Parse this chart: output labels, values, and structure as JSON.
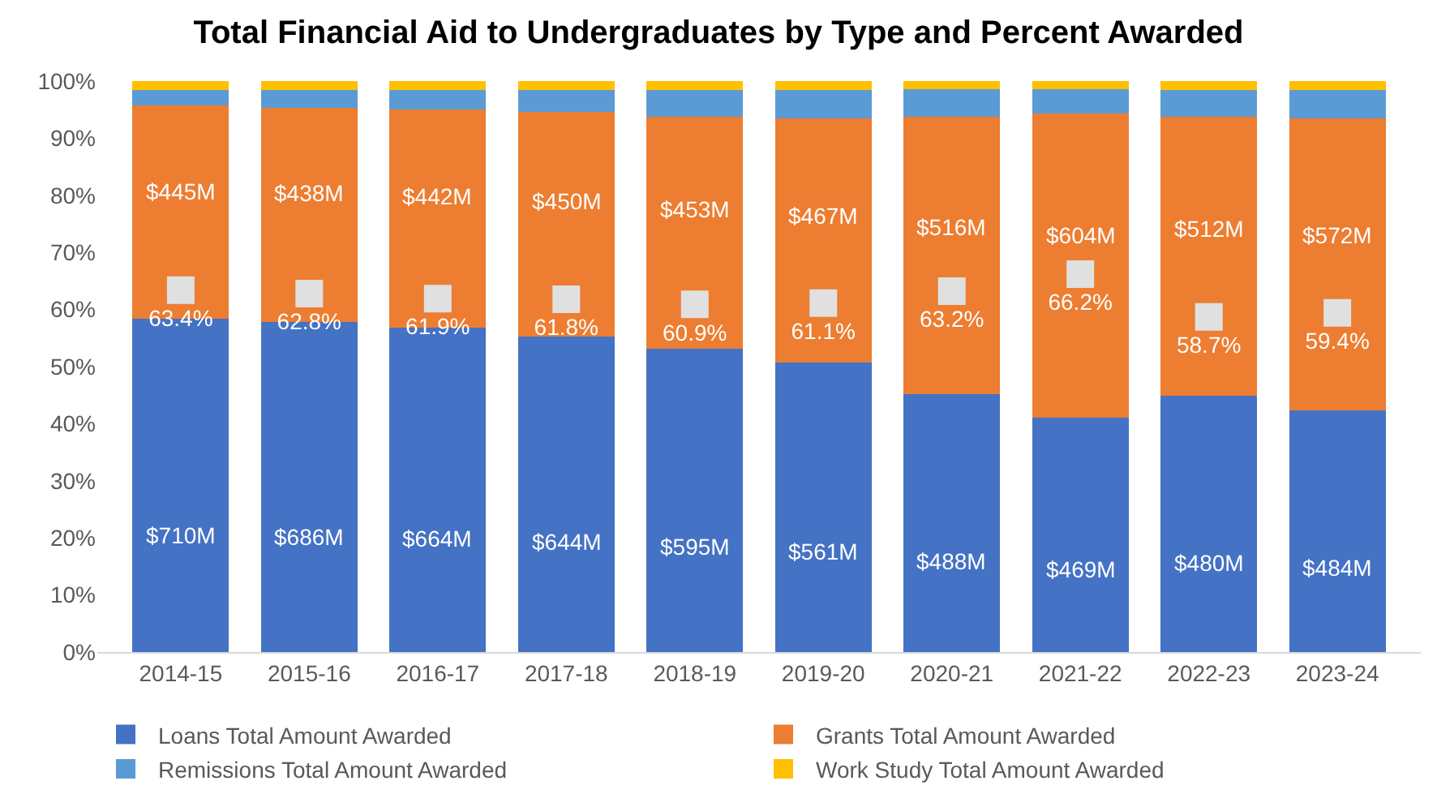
{
  "chart_data": {
    "type": "bar",
    "title": "Total Financial Aid to Undergraduates by Type and Percent Awarded",
    "stacked": true,
    "categories": [
      "2014-15",
      "2015-16",
      "2016-17",
      "2017-18",
      "2018-19",
      "2019-20",
      "2020-21",
      "2021-22",
      "2022-23",
      "2023-24"
    ],
    "series": [
      {
        "name": "Loans Total Amount Awarded",
        "color": "#4472c4",
        "values": [
          58.4,
          57.8,
          56.8,
          55.3,
          53.1,
          50.7,
          45.2,
          41.1,
          44.9,
          42.4
        ]
      },
      {
        "name": "Grants Total Amount Awarded",
        "color": "#ed7d31",
        "values": [
          37.3,
          37.5,
          38.2,
          39.3,
          40.7,
          42.7,
          48.6,
          53.2,
          48.9,
          51.0
        ]
      },
      {
        "name": "Remissions Total Amount Awarded",
        "color": "#5b9bd5",
        "values": [
          2.7,
          3.1,
          3.4,
          3.8,
          4.6,
          5.0,
          4.8,
          4.3,
          4.6,
          5.0
        ]
      },
      {
        "name": "Work Study Total Amount Awarded",
        "color": "#ffc000",
        "values": [
          1.6,
          1.6,
          1.6,
          1.6,
          1.6,
          1.6,
          1.4,
          1.4,
          1.6,
          1.6
        ]
      },
      {
        "type": "scatter",
        "color": "#e0e0e0",
        "x": [
          "2014-15",
          "2015-16",
          "2016-17",
          "2017-18",
          "2018-19",
          "2019-20",
          "2020-21",
          "2021-22",
          "2022-23",
          "2023-24"
        ],
        "values": [
          63.4,
          62.8,
          61.9,
          61.8,
          60.9,
          61.1,
          63.2,
          66.2,
          58.7,
          59.4
        ],
        "value_labels": [
          "63.4%",
          "62.8%",
          "61.9%",
          "61.8%",
          "60.9%",
          "61.1%",
          "63.2%",
          "66.2%",
          "58.7%",
          "59.4%"
        ]
      }
    ],
    "annotations": [
      "$710M",
      "$686M",
      "$664M",
      "$644M",
      "$595M",
      "$561M",
      "$488M",
      "$469M",
      "$480M",
      "$484M",
      "$445M",
      "$438M",
      "$442M",
      "$450M",
      "$453M",
      "$467M",
      "$516M",
      "$604M",
      "$512M",
      "$572M"
    ],
    "marker": "square",
    "ylim": [
      0,
      100
    ],
    "yticks": [
      {
        "value": 0,
        "label": "0%"
      },
      {
        "value": 10,
        "label": "10%"
      },
      {
        "value": 20,
        "label": "20%"
      },
      {
        "value": 30,
        "label": "30%"
      },
      {
        "value": 40,
        "label": "40%"
      },
      {
        "value": 50,
        "label": "50%"
      },
      {
        "value": 60,
        "label": "60%"
      },
      {
        "value": 70,
        "label": "70%"
      },
      {
        "value": 80,
        "label": "80%"
      },
      {
        "value": 90,
        "label": "90%"
      },
      {
        "value": 100,
        "label": "100%"
      }
    ],
    "grid": false,
    "legend": "bottom"
  }
}
